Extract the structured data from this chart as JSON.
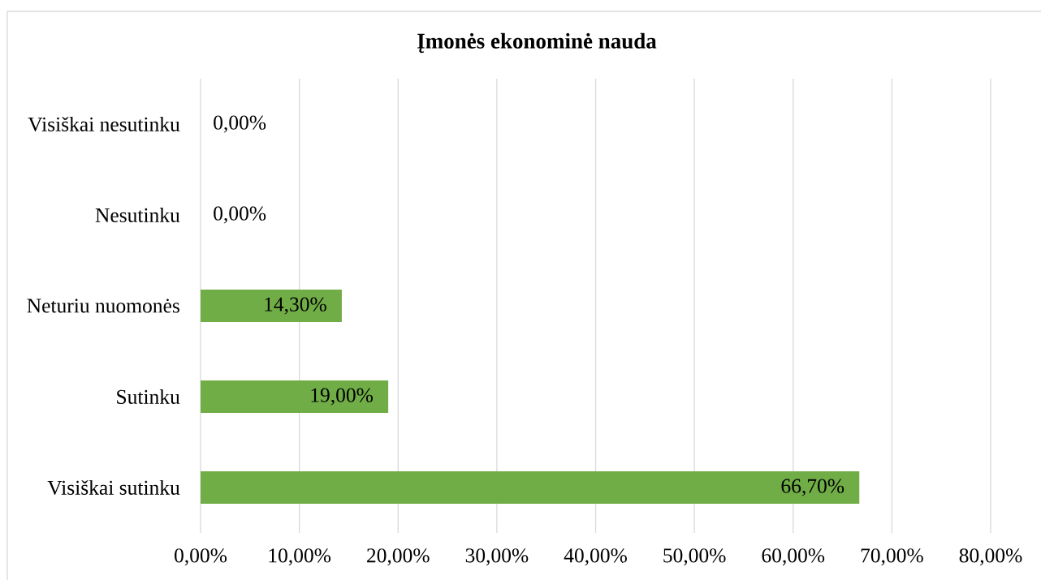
{
  "chart_data": {
    "type": "bar",
    "orientation": "horizontal",
    "title": "Įmonės ekonominė nauda",
    "categories": [
      "Visiškai nesutinku",
      "Nesutinku",
      "Neturiu nuomonės",
      "Sutinku",
      "Visiškai sutinku"
    ],
    "values": [
      0,
      0,
      14.3,
      19.0,
      66.7
    ],
    "color": "#70ad47",
    "value_labels": [
      "0,00%",
      "0,00%",
      "14,30%",
      "19,00%",
      "66,70%"
    ],
    "xlim": [
      0,
      80
    ],
    "xticks": [
      {
        "value": 0,
        "label": "0,00%"
      },
      {
        "value": 10,
        "label": "10,00%"
      },
      {
        "value": 20,
        "label": "20,00%"
      },
      {
        "value": 30,
        "label": "30,00%"
      },
      {
        "value": 40,
        "label": "40,00%"
      },
      {
        "value": 50,
        "label": "50,00%"
      },
      {
        "value": 60,
        "label": "60,00%"
      },
      {
        "value": 70,
        "label": "70,00%"
      },
      {
        "value": 80,
        "label": "80,00%"
      }
    ],
    "grid": "x"
  }
}
